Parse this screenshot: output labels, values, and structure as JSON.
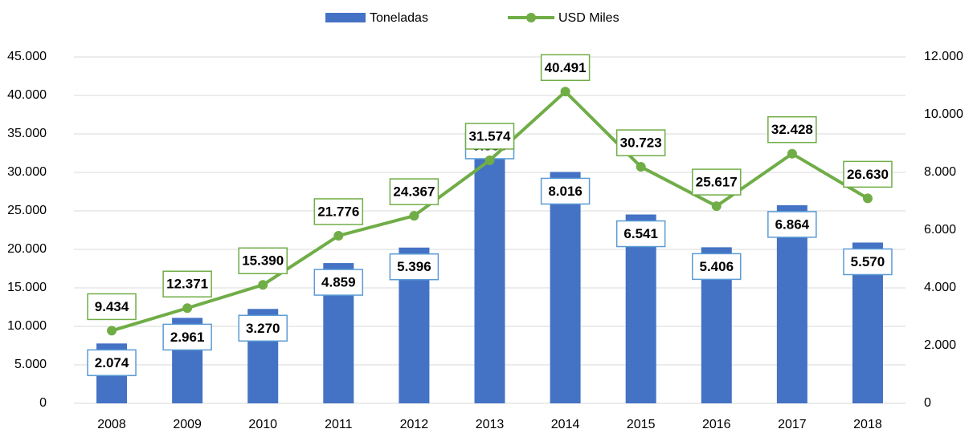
{
  "chart_data": {
    "type": "bar",
    "categories": [
      "2008",
      "2009",
      "2010",
      "2011",
      "2012",
      "2013",
      "2014",
      "2015",
      "2016",
      "2017",
      "2018"
    ],
    "series": [
      {
        "name": "Toneladas",
        "type": "bar",
        "axis": "y2",
        "color": "#4472c4",
        "values": [
          2074,
          2961,
          3270,
          4859,
          5396,
          9585,
          8016,
          6541,
          5406,
          6864,
          5570
        ],
        "value_labels": [
          "2.074",
          "2.961",
          "3.270",
          "4.859",
          "5.396",
          "9.585",
          "8.016",
          "6.541",
          "5.406",
          "6.864",
          "5.570"
        ]
      },
      {
        "name": "USD Miles",
        "type": "line",
        "axis": "y",
        "color": "#70ad47",
        "values": [
          9434,
          12371,
          15390,
          21776,
          24367,
          31574,
          40491,
          30723,
          25617,
          32428,
          26630
        ],
        "value_labels": [
          "9.434",
          "12.371",
          "15.390",
          "21.776",
          "24.367",
          "31.574",
          "40.491",
          "30.723",
          "25.617",
          "32.428",
          "26.630"
        ]
      }
    ],
    "ylim": [
      0,
      45000
    ],
    "yticks": [
      0,
      {
        "value": 5000,
        "label": "5.000"
      },
      {
        "value": 10000,
        "label": "10.000"
      },
      {
        "value": 15000,
        "label": "15.000"
      },
      {
        "value": 20000,
        "label": "20.000"
      },
      {
        "value": 25000,
        "label": "25.000"
      },
      {
        "value": 30000,
        "label": "30.000"
      },
      {
        "value": 35000,
        "label": "35.000"
      },
      {
        "value": 40000,
        "label": "40.000"
      },
      {
        "value": 45000,
        "label": "45.000"
      }
    ],
    "y2lim": [
      0,
      12000
    ],
    "y2ticks": [
      0,
      {
        "value": 2000,
        "label": "2.000"
      },
      {
        "value": 4000,
        "label": "4.000"
      },
      {
        "value": 6000,
        "label": "6.000"
      },
      {
        "value": 8000,
        "label": "8.000"
      },
      {
        "value": 10000,
        "label": "10.000"
      },
      {
        "value": 12000,
        "label": "12.000"
      }
    ],
    "grid": true,
    "legend": "top"
  }
}
